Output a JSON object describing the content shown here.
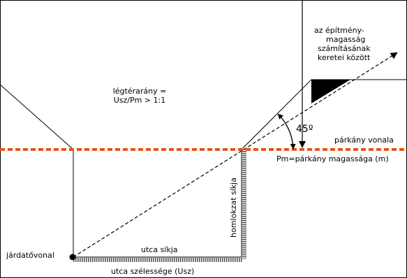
{
  "labels": {
    "envelope_line1": "az építmény-",
    "envelope_line2": "magasság",
    "envelope_line3": "számításának",
    "envelope_line4": "keretei között",
    "airspace_line1": "légtérarány =",
    "airspace_line2": "Usz/Pm > 1:1",
    "angle": "45º",
    "cornice_line": "párkány vonala",
    "cornice_height": "Pm=párkány magassága (m)",
    "facade_plane": "homlokzat síkja",
    "curb_line": "járdatővonal",
    "street_plane": "utca síkja",
    "street_width": "utca szélessége (Usz)"
  },
  "colors": {
    "line": "#000000",
    "cornice_dash": "#e8541a",
    "hatch": "#555555",
    "background": "#ffffff"
  }
}
